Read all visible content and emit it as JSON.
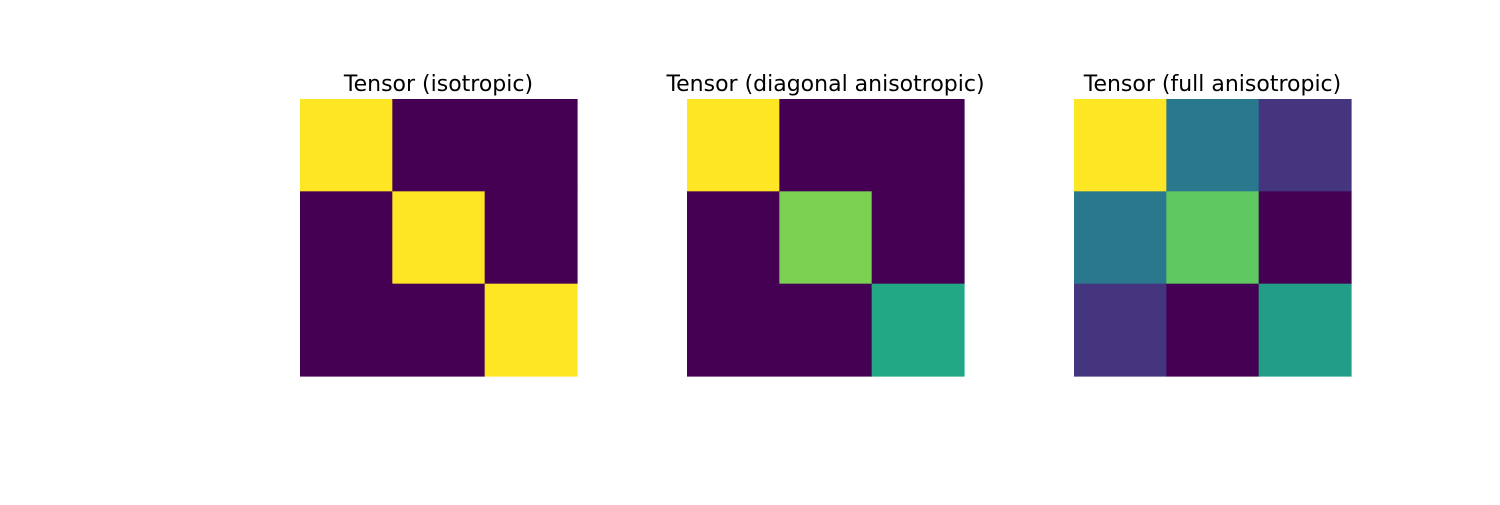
{
  "chart_data": [
    {
      "type": "heatmap",
      "title": "Tensor (isotropic)",
      "colormap": "viridis",
      "axes": "off",
      "matrix": [
        [
          1,
          0,
          0
        ],
        [
          0,
          1,
          0
        ],
        [
          0,
          0,
          1
        ]
      ]
    },
    {
      "type": "heatmap",
      "title": "Tensor (diagonal anisotropic)",
      "colormap": "viridis",
      "axes": "off",
      "matrix": [
        [
          1,
          0,
          0
        ],
        [
          0,
          0.8,
          0
        ],
        [
          0,
          0,
          0.6
        ]
      ]
    },
    {
      "type": "heatmap",
      "title": "Tensor (full anisotropic)",
      "colormap": "viridis",
      "axes": "off",
      "matrix": [
        [
          1,
          0.4,
          0.15
        ],
        [
          0.4,
          0.75,
          0
        ],
        [
          0.15,
          0,
          0.55
        ]
      ]
    }
  ]
}
